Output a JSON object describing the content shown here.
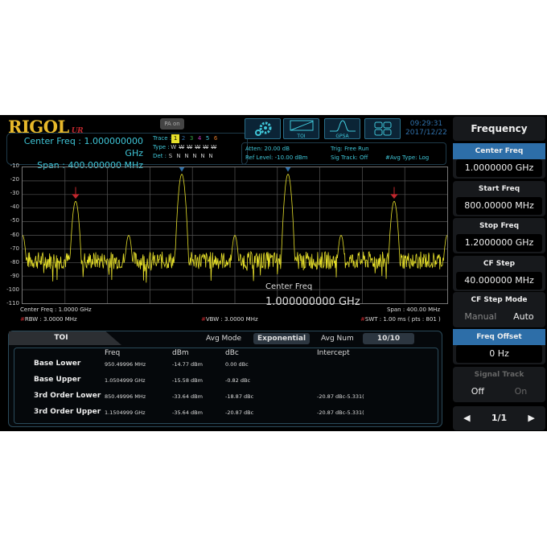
{
  "header": {
    "logo": "RIGOL",
    "logo_sub": "UR",
    "pa_label": "PA on",
    "center_freq": "Center Freq : 1.000000000 GHz",
    "span": "Span :  400.000000 MHz",
    "trace_label": "Trace :",
    "type_label": "Type :",
    "det_label": "Det :",
    "traces": [
      "1",
      "2",
      "3",
      "4",
      "5",
      "6"
    ],
    "trace_colors": [
      "#e7e02a",
      "#2f6fa8",
      "#3aa84a",
      "#c040c0",
      "#3fc6d8",
      "#e07a2a"
    ],
    "types": [
      "W",
      "W",
      "W",
      "W",
      "W",
      "W"
    ],
    "dets": [
      "S",
      "N",
      "N",
      "N",
      "N",
      "N"
    ],
    "icons": [
      {
        "name": "settings-gear-icon",
        "label": ""
      },
      {
        "name": "toi-mode-icon",
        "label": "TOI"
      },
      {
        "name": "gpsa-mode-icon",
        "label": "GPSA"
      },
      {
        "name": "layout-grid-icon",
        "label": ""
      }
    ],
    "time": "09:29:31",
    "date": "2017/12/22",
    "atten": "Atten: 20.00 dB",
    "ref_level": "Ref Level: -10.00 dBm",
    "trig": "Trig: Free Run",
    "sig_track": "Sig Track: Off",
    "avg_type": "#Avg Type: Log"
  },
  "plot_footer": {
    "center": "Center Freq : 1.0000 GHz",
    "span": "Span : 400.00 MHz",
    "rbw": "RBW : 3.0000 MHz",
    "vbw": "VBW : 3.0000 MHz",
    "swt": "SWT : 1.00 ms ( pts : 801 )",
    "overlay_label": "Center Freq",
    "overlay_value": "1.000000000 GHz"
  },
  "chart_data": {
    "type": "line",
    "xlim_mhz": [
      800,
      1200
    ],
    "ylim": [
      -110,
      -10
    ],
    "yticks": [
      "-10",
      "-20",
      "-30",
      "-40",
      "-50",
      "-60",
      "-70",
      "-80",
      "-90",
      "-100",
      "-110"
    ],
    "peaks": [
      {
        "x": 800,
        "y": -60
      },
      {
        "x": 850,
        "y": -35
      },
      {
        "x": 900,
        "y": -60
      },
      {
        "x": 950,
        "y": -15
      },
      {
        "x": 1000,
        "y": -60
      },
      {
        "x": 1050,
        "y": -15
      },
      {
        "x": 1100,
        "y": -60
      },
      {
        "x": 1150,
        "y": -35
      },
      {
        "x": 1200,
        "y": -60
      }
    ],
    "noise_floor": [
      -85,
      -72
    ],
    "trace_color": "#e7e02a",
    "markers": [
      {
        "x": 850,
        "color": "#c0272d"
      },
      {
        "x": 950,
        "color": "#2f6fa8"
      },
      {
        "x": 1050,
        "color": "#2f6fa8"
      },
      {
        "x": 1150,
        "color": "#c0272d"
      }
    ]
  },
  "toi": {
    "tab": "TOI",
    "avg_mode_label": "Avg Mode",
    "avg_mode": "Exponential",
    "avg_num_label": "Avg Num",
    "avg_num": "10/10",
    "columns": [
      "Freq",
      "dBm",
      "dBc",
      "Intercept"
    ],
    "rows": [
      {
        "label": "Base Lower",
        "freq": "950.49996 MHz",
        "dbm": "-14.77 dBm",
        "dbc": "0.00 dBc",
        "intercept": ""
      },
      {
        "label": "Base Upper",
        "freq": "1.0504999 GHz",
        "dbm": "-15.58 dBm",
        "dbc": "-0.82 dBc",
        "intercept": ""
      },
      {
        "label": "3rd Order Lower",
        "freq": "850.49996 MHz",
        "dbm": "-33.64 dBm",
        "dbc": "-18.87 dBc",
        "intercept": "-20.87 dBc-5.331("
      },
      {
        "label": "3rd Order Upper",
        "freq": "1.1504999 GHz",
        "dbm": "-35.64 dBm",
        "dbc": "-20.87 dBc",
        "intercept": "-20.87 dBc-5.331("
      }
    ]
  },
  "menu": {
    "title": "Frequency",
    "items": [
      {
        "label": "Center Freq",
        "value": "1.0000000 GHz"
      },
      {
        "label": "Start Freq",
        "value": "800.00000 MHz"
      },
      {
        "label": "Stop Freq",
        "value": "1.2000000 GHz"
      },
      {
        "label": "CF Step",
        "value": "40.000000 MHz"
      }
    ],
    "cf_step_mode": {
      "label": "CF Step Mode",
      "opt1": "Manual",
      "opt2": "Auto"
    },
    "freq_offset": {
      "label": "Freq Offset",
      "value": "0 Hz"
    },
    "signal_track": {
      "label": "Signal Track",
      "opt1": "Off",
      "opt2": "On"
    },
    "page": "1/1"
  }
}
